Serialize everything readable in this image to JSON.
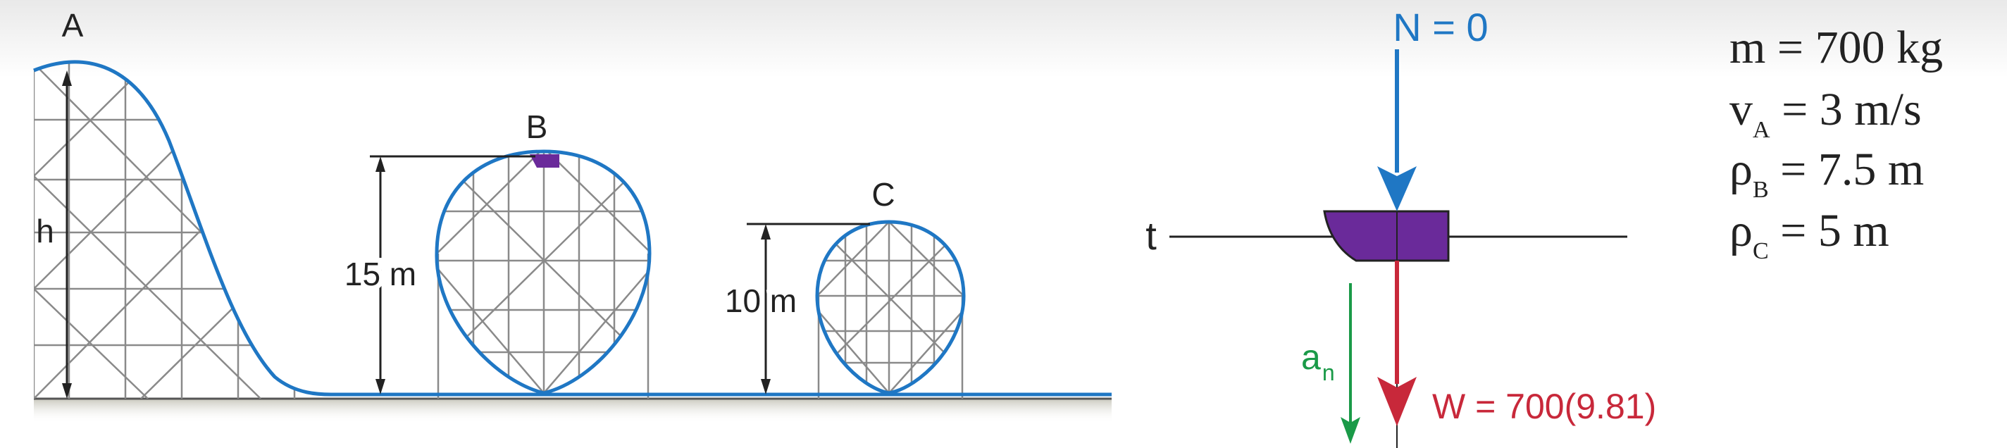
{
  "colors": {
    "track": "#1f77c4",
    "scaffold": "#8a8a8a",
    "car": "#6a2a9a",
    "normal_force": "#1f77c4",
    "weight": "#c8283a",
    "acceleration": "#1a9a48",
    "text": "#222222"
  },
  "coaster": {
    "label_a": "A",
    "label_b": "B",
    "label_c": "C",
    "label_h": "h",
    "height_b": "15 m",
    "height_c": "10 m"
  },
  "fbd": {
    "normal": "N = 0",
    "tangent": "t",
    "weight": "W = 700(9.81)",
    "an_main": "a",
    "an_sub": "n"
  },
  "givens": [
    {
      "sym": "m",
      "sub": "",
      "rhs": " = 700 kg"
    },
    {
      "sym": "v",
      "sub": "A",
      "rhs": " = 3 m/s"
    },
    {
      "sym": "ρ",
      "sub": "B",
      "rhs": " = 7.5 m"
    },
    {
      "sym": "ρ",
      "sub": "C",
      "rhs": " = 5 m"
    }
  ]
}
